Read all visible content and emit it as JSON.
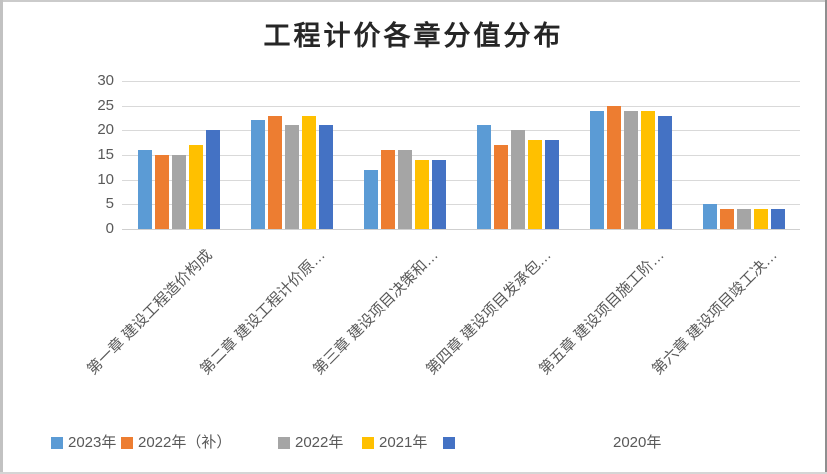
{
  "chart_data": {
    "type": "bar",
    "title": "工程计价各章分值分布",
    "categories": [
      "第一章 建设工程造价构成",
      "第二章 建设工程计价原…",
      "第三章 建设项目决策和…",
      "第四章 建设项目发承包…",
      "第五章 建设项目施工阶…",
      "第六章 建设项目竣工决…"
    ],
    "series": [
      {
        "name": "2023年",
        "color": "#5B9BD5",
        "values": [
          16,
          22,
          12,
          21,
          24,
          5
        ]
      },
      {
        "name": "2022年（补）",
        "color": "#ED7D31",
        "values": [
          15,
          23,
          16,
          17,
          25,
          4
        ]
      },
      {
        "name": "2022年",
        "color": "#A5A5A5",
        "values": [
          15,
          21,
          16,
          20,
          24,
          4
        ]
      },
      {
        "name": "2021年",
        "color": "#FFC000",
        "values": [
          17,
          23,
          14,
          18,
          24,
          4
        ]
      },
      {
        "name": "2020年",
        "color": "#4472C4",
        "values": [
          20,
          21,
          14,
          18,
          23,
          4
        ]
      }
    ],
    "ylim": [
      0,
      30
    ],
    "yticks": [
      0,
      5,
      10,
      15,
      20,
      25,
      30
    ],
    "grid": true,
    "legend_position": "bottom",
    "axis_text_color": "#595959",
    "gridline_color": "#D9D9D9",
    "title_color": "#262626"
  }
}
